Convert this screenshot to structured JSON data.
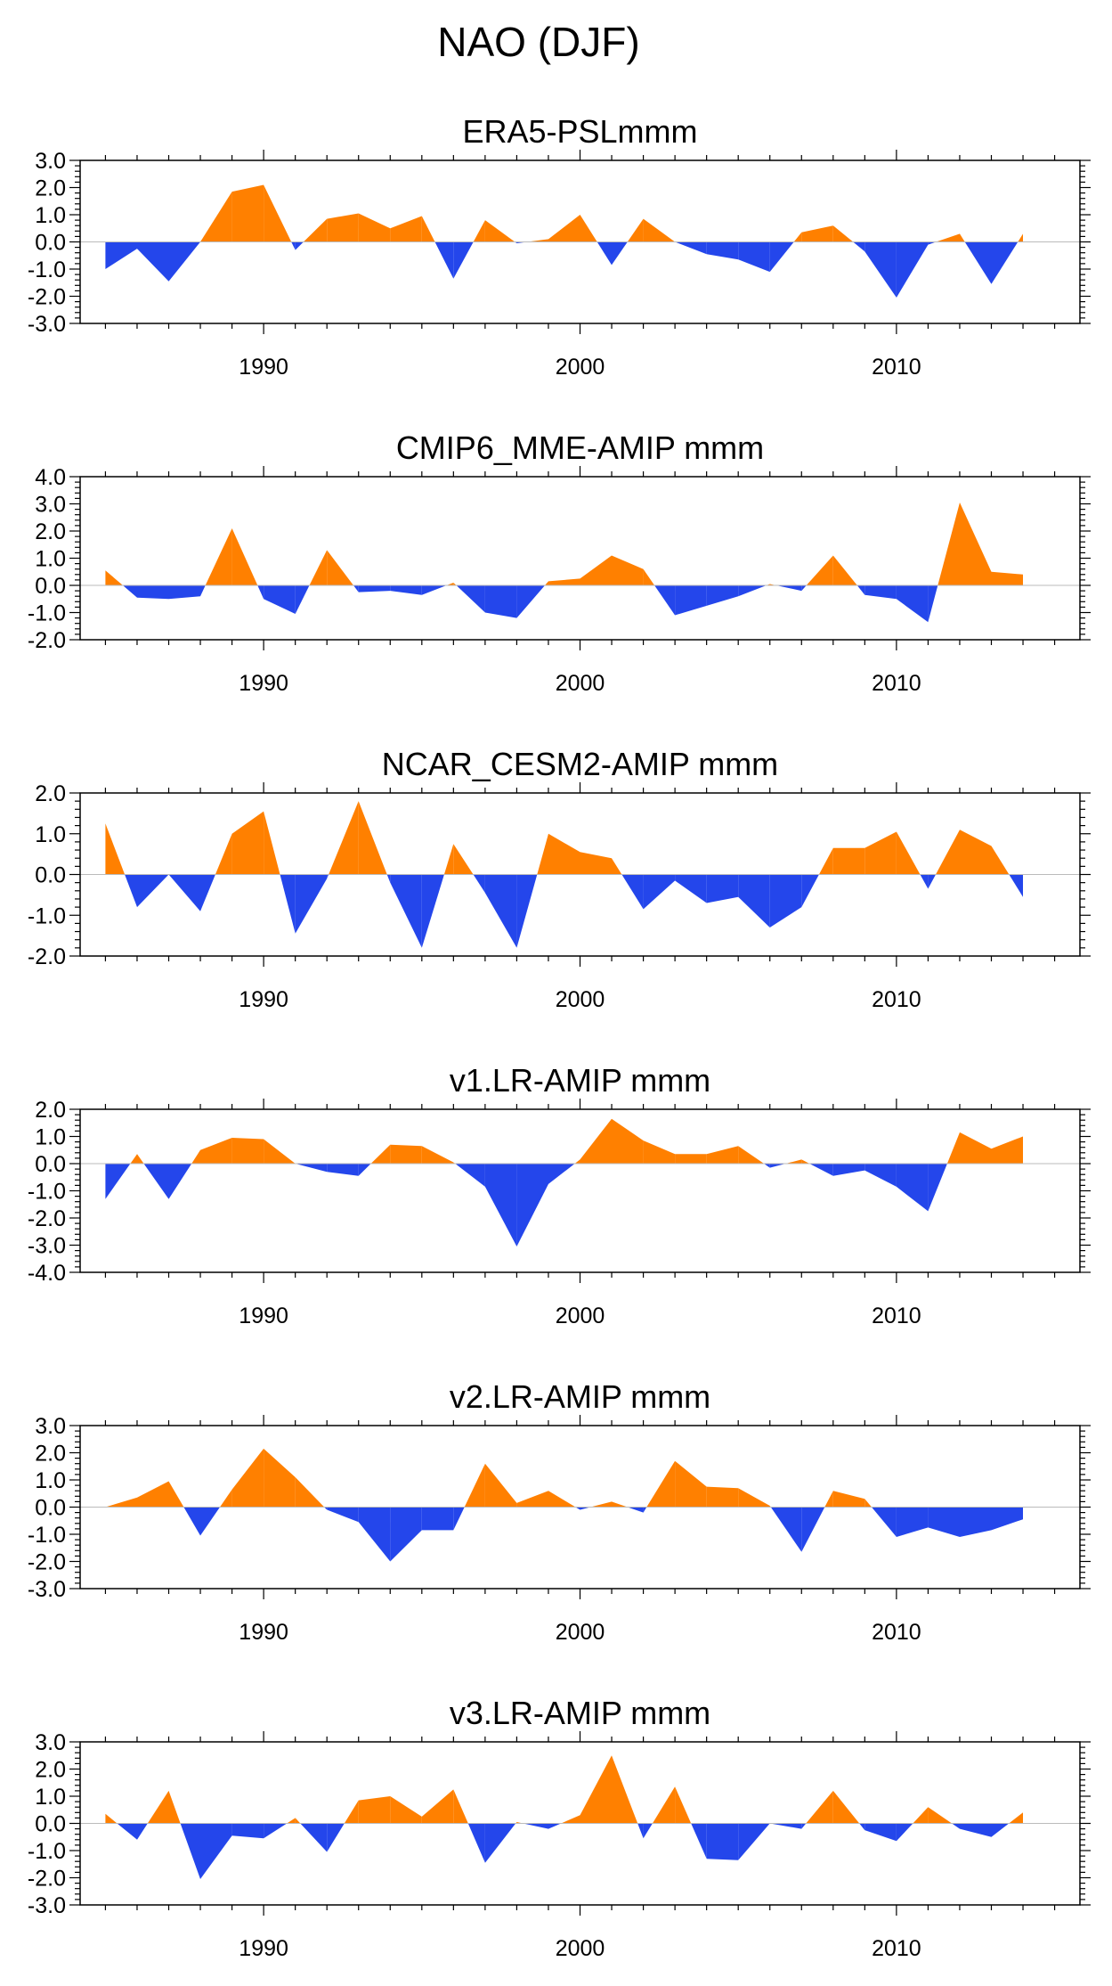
{
  "title": "NAO (DJF)",
  "colors": {
    "positive": "#FF8000",
    "negative": "#2446EB",
    "axis": "#000000",
    "zero_line": "#BBBBBB"
  },
  "chart_data": [
    {
      "type": "area",
      "title": "ERA5-PSLmmm",
      "x": [
        1985,
        1986,
        1987,
        1988,
        1989,
        1990,
        1991,
        1992,
        1993,
        1994,
        1995,
        1996,
        1997,
        1998,
        1999,
        2000,
        2001,
        2002,
        2003,
        2004,
        2005,
        2006,
        2007,
        2008,
        2009,
        2010,
        2011,
        2012,
        2013,
        2014
      ],
      "values": [
        -1.0,
        -0.25,
        -1.45,
        0.0,
        1.85,
        2.1,
        -0.3,
        0.85,
        1.05,
        0.5,
        0.95,
        -1.35,
        0.8,
        -0.05,
        0.1,
        1.0,
        -0.85,
        0.85,
        0.0,
        -0.45,
        -0.65,
        -1.1,
        0.35,
        0.6,
        -0.35,
        -2.05,
        -0.1,
        0.3,
        -1.55,
        0.3
      ],
      "xlim": [
        1984.2,
        2015.8
      ],
      "xticks": [
        1990,
        2000,
        2010
      ],
      "xtick_labels": [
        "1990",
        "2000",
        "2010"
      ],
      "ylim": [
        -3.0,
        3.0
      ],
      "yticks": [
        3.0,
        2.0,
        1.0,
        0.0,
        -1.0,
        -2.0,
        -3.0
      ],
      "ytick_labels": [
        "3.0",
        "2.0",
        "1.0",
        "0.0",
        "-1.0",
        "-2.0",
        "-3.0"
      ]
    },
    {
      "type": "area",
      "title": "CMIP6_MME-AMIP  mmm",
      "x": [
        1985,
        1986,
        1987,
        1988,
        1989,
        1990,
        1991,
        1992,
        1993,
        1994,
        1995,
        1996,
        1997,
        1998,
        1999,
        2000,
        2001,
        2002,
        2003,
        2004,
        2005,
        2006,
        2007,
        2008,
        2009,
        2010,
        2011,
        2012,
        2013,
        2014
      ],
      "values": [
        0.55,
        -0.45,
        -0.5,
        -0.4,
        2.1,
        -0.5,
        -1.05,
        1.3,
        -0.25,
        -0.2,
        -0.35,
        0.1,
        -1.0,
        -1.2,
        0.15,
        0.25,
        1.1,
        0.6,
        -1.1,
        -0.75,
        -0.4,
        0.05,
        -0.2,
        1.1,
        -0.35,
        -0.5,
        -1.35,
        3.05,
        0.5,
        0.4
      ],
      "xlim": [
        1984.2,
        2015.8
      ],
      "xticks": [
        1990,
        2000,
        2010
      ],
      "xtick_labels": [
        "1990",
        "2000",
        "2010"
      ],
      "ylim": [
        -2.0,
        4.0
      ],
      "yticks": [
        4.0,
        3.0,
        2.0,
        1.0,
        0.0,
        -1.0,
        -2.0
      ],
      "ytick_labels": [
        "4.0",
        "3.0",
        "2.0",
        "1.0",
        "0.0",
        "-1.0",
        "-2.0"
      ]
    },
    {
      "type": "area",
      "title": "NCAR_CESM2-AMIP  mmm",
      "x": [
        1985,
        1986,
        1987,
        1988,
        1989,
        1990,
        1991,
        1992,
        1993,
        1994,
        1995,
        1996,
        1997,
        1998,
        1999,
        2000,
        2001,
        2002,
        2003,
        2004,
        2005,
        2006,
        2007,
        2008,
        2009,
        2010,
        2011,
        2012,
        2013,
        2014
      ],
      "values": [
        1.25,
        -0.8,
        0.0,
        -0.9,
        1.0,
        1.55,
        -1.45,
        -0.1,
        1.8,
        -0.2,
        -1.8,
        0.75,
        -0.45,
        -1.8,
        1.0,
        0.55,
        0.4,
        -0.85,
        -0.15,
        -0.7,
        -0.55,
        -1.3,
        -0.8,
        0.65,
        0.65,
        1.05,
        -0.35,
        1.1,
        0.7,
        -0.55
      ],
      "xlim": [
        1984.2,
        2015.8
      ],
      "xticks": [
        1990,
        2000,
        2010
      ],
      "xtick_labels": [
        "1990",
        "2000",
        "2010"
      ],
      "ylim": [
        -2.0,
        2.0
      ],
      "yticks": [
        2.0,
        1.0,
        0.0,
        -1.0,
        -2.0
      ],
      "ytick_labels": [
        "2.0",
        "1.0",
        "0.0",
        "-1.0",
        "-2.0"
      ]
    },
    {
      "type": "area",
      "title": "v1.LR-AMIP  mmm",
      "x": [
        1985,
        1986,
        1987,
        1988,
        1989,
        1990,
        1991,
        1992,
        1993,
        1994,
        1995,
        1996,
        1997,
        1998,
        1999,
        2000,
        2001,
        2002,
        2003,
        2004,
        2005,
        2006,
        2007,
        2008,
        2009,
        2010,
        2011,
        2012,
        2013,
        2014
      ],
      "values": [
        -1.3,
        0.35,
        -1.3,
        0.5,
        0.95,
        0.9,
        0.0,
        -0.3,
        -0.45,
        0.7,
        0.65,
        0.05,
        -0.85,
        -3.05,
        -0.75,
        0.15,
        1.65,
        0.85,
        0.35,
        0.35,
        0.65,
        -0.15,
        0.15,
        -0.45,
        -0.25,
        -0.85,
        -1.75,
        1.15,
        0.55,
        1.0
      ],
      "xlim": [
        1984.2,
        2015.8
      ],
      "xticks": [
        1990,
        2000,
        2010
      ],
      "xtick_labels": [
        "1990",
        "2000",
        "2010"
      ],
      "ylim": [
        -4.0,
        2.0
      ],
      "yticks": [
        2.0,
        1.0,
        0.0,
        -1.0,
        -2.0,
        -3.0,
        -4.0
      ],
      "ytick_labels": [
        "2.0",
        "1.0",
        "0.0",
        "-1.0",
        "-2.0",
        "-3.0",
        "-4.0"
      ]
    },
    {
      "type": "area",
      "title": "v2.LR-AMIP  mmm",
      "x": [
        1985,
        1986,
        1987,
        1988,
        1989,
        1990,
        1991,
        1992,
        1993,
        1994,
        1995,
        1996,
        1997,
        1998,
        1999,
        2000,
        2001,
        2002,
        2003,
        2004,
        2005,
        2006,
        2007,
        2008,
        2009,
        2010,
        2011,
        2012,
        2013,
        2014
      ],
      "values": [
        0.0,
        0.35,
        0.95,
        -1.05,
        0.65,
        2.15,
        1.1,
        -0.1,
        -0.55,
        -2.0,
        -0.85,
        -0.85,
        1.6,
        0.15,
        0.6,
        -0.1,
        0.2,
        -0.2,
        1.7,
        0.75,
        0.7,
        0.05,
        -1.65,
        0.6,
        0.3,
        -1.1,
        -0.75,
        -1.1,
        -0.85,
        -0.45
      ],
      "xlim": [
        1984.2,
        2015.8
      ],
      "xticks": [
        1990,
        2000,
        2010
      ],
      "xtick_labels": [
        "1990",
        "2000",
        "2010"
      ],
      "ylim": [
        -3.0,
        3.0
      ],
      "yticks": [
        3.0,
        2.0,
        1.0,
        0.0,
        -1.0,
        -2.0,
        -3.0
      ],
      "ytick_labels": [
        "3.0",
        "2.0",
        "1.0",
        "0.0",
        "-1.0",
        "-2.0",
        "-3.0"
      ]
    },
    {
      "type": "area",
      "title": "v3.LR-AMIP  mmm",
      "x": [
        1985,
        1986,
        1987,
        1988,
        1989,
        1990,
        1991,
        1992,
        1993,
        1994,
        1995,
        1996,
        1997,
        1998,
        1999,
        2000,
        2001,
        2002,
        2003,
        2004,
        2005,
        2006,
        2007,
        2008,
        2009,
        2010,
        2011,
        2012,
        2013,
        2014
      ],
      "values": [
        0.35,
        -0.6,
        1.2,
        -2.05,
        -0.45,
        -0.55,
        0.2,
        -1.05,
        0.85,
        1.0,
        0.25,
        1.25,
        -1.45,
        0.05,
        -0.2,
        0.3,
        2.5,
        -0.55,
        1.35,
        -1.3,
        -1.35,
        0.0,
        -0.2,
        1.2,
        -0.25,
        -0.65,
        0.6,
        -0.2,
        -0.5,
        0.4
      ],
      "xlim": [
        1984.2,
        2015.8
      ],
      "xticks": [
        1990,
        2000,
        2010
      ],
      "xtick_labels": [
        "1990",
        "2000",
        "2010"
      ],
      "ylim": [
        -3.0,
        3.0
      ],
      "yticks": [
        3.0,
        2.0,
        1.0,
        0.0,
        -1.0,
        -2.0,
        -3.0
      ],
      "ytick_labels": [
        "3.0",
        "2.0",
        "1.0",
        "0.0",
        "-1.0",
        "-2.0",
        "-3.0"
      ]
    }
  ]
}
